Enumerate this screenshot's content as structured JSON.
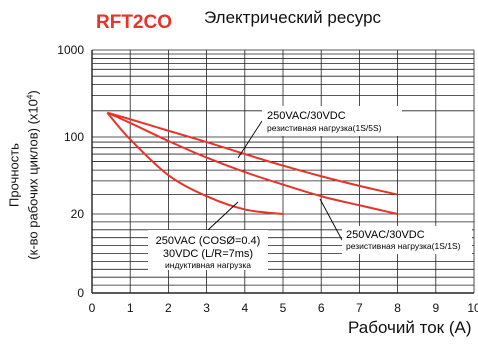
{
  "header": {
    "brand": "RFT2CO"
  },
  "chart_data": {
    "type": "line",
    "title": "Электрический ресурс",
    "xlabel": "Рабочий ток (A)",
    "ylabel_line1": "Прочность",
    "ylabel_line2_prefix": "(к-во рабочих циклов) (x10",
    "ylabel_line2_exp": "4",
    "ylabel_line2_suffix": ")",
    "xlim": [
      0,
      10
    ],
    "ylim_ticks": [
      0,
      20,
      100,
      1000
    ],
    "x_ticks": [
      "0",
      "1",
      "2",
      "3",
      "4",
      "5",
      "6",
      "7",
      "8",
      "9",
      "10"
    ],
    "y_ticks": [
      "0",
      "20",
      "100",
      "1000"
    ],
    "grid": true,
    "series": [
      {
        "x": [
          0.4,
          1,
          2,
          3,
          4,
          5,
          6,
          7,
          8
        ],
        "y": [
          190,
          160,
          118,
          90,
          70,
          55,
          44,
          36,
          30
        ]
      },
      {
        "x": [
          0.4,
          1,
          2,
          3,
          4,
          5,
          6,
          7,
          8
        ],
        "y": [
          190,
          145,
          92,
          65,
          48,
          37,
          29,
          24,
          20
        ]
      },
      {
        "x": [
          0.4,
          1,
          2,
          3,
          4,
          5
        ],
        "y": [
          190,
          95,
          45,
          29,
          22,
          20
        ]
      }
    ],
    "annotations": [
      {
        "lines": [
          "250VAC/30VDC",
          "резистивная нагрузка(1S/5S)"
        ]
      },
      {
        "lines": [
          "250VAC/30VDC",
          "резистивная нагрузка(1S/1S)"
        ]
      },
      {
        "lines": [
          "250VAC (COSØ=0.4)",
          "30VDC (L/R=7ms)",
          "индуктивная нагрузка"
        ]
      }
    ],
    "colors": {
      "curve": "#e8322a",
      "grid": "#222222",
      "text": "#111111"
    }
  }
}
